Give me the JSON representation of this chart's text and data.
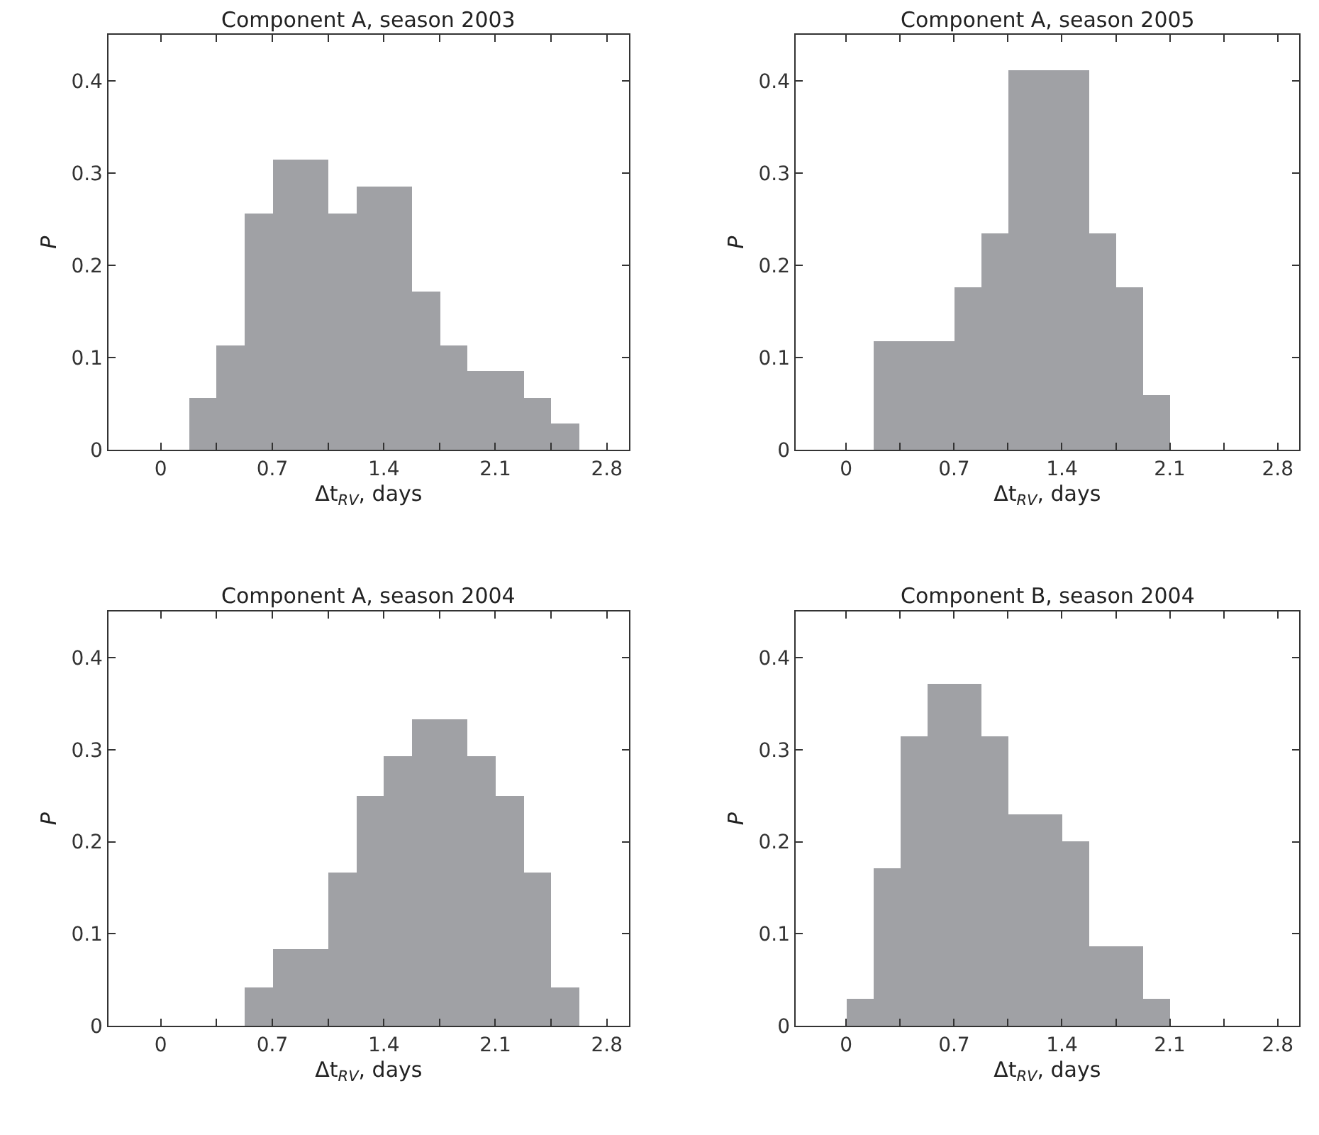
{
  "chart_data": [
    {
      "type": "histogram",
      "title": "Component A, season 2003",
      "xlabel": "Δt$_{RV}$, days",
      "ylabel": "P",
      "color": "#a0a1a5",
      "bins": [
        0.175,
        0.35,
        0.525,
        0.7,
        0.875,
        1.05,
        1.225,
        1.4,
        1.575,
        1.75,
        1.925,
        2.1,
        2.275,
        2.45,
        2.625
      ],
      "values": [
        0.057,
        0.114,
        0.257,
        0.314,
        0.314,
        0.257,
        0.286,
        0.286,
        0.171,
        0.114,
        0.086,
        0.086,
        0.057,
        0.029
      ],
      "xlim": [
        -0.33,
        2.94
      ],
      "ylim": [
        0,
        0.45
      ],
      "xticks": [
        0,
        {
          "value": 0.35,
          "label": null
        },
        0.7,
        {
          "value": 1.05,
          "label": null
        },
        1.4,
        {
          "value": 1.75,
          "label": null
        },
        2.1,
        {
          "value": 2.45,
          "label": null
        },
        2.8
      ],
      "yticks": [
        0,
        0.1,
        0.2,
        0.3,
        0.4
      ]
    },
    {
      "type": "histogram",
      "title": "Component A, season 2005",
      "xlabel": "Δt$_{RV}$, days",
      "ylabel": "P",
      "color": "#a0a1a5",
      "bins": [
        0.175,
        0.35,
        0.525,
        0.7,
        0.875,
        1.05,
        1.225,
        1.4,
        1.575,
        1.75,
        1.925,
        2.1
      ],
      "values": [
        0.118,
        0.118,
        0.118,
        0.176,
        0.235,
        0.412,
        0.412,
        0.412,
        0.235,
        0.176,
        0.059
      ],
      "xlim": [
        -0.33,
        2.94
      ],
      "ylim": [
        0,
        0.45
      ],
      "xticks": [
        0,
        {
          "value": 0.35,
          "label": null
        },
        0.7,
        {
          "value": 1.05,
          "label": null
        },
        1.4,
        {
          "value": 1.75,
          "label": null
        },
        2.1,
        {
          "value": 2.45,
          "label": null
        },
        2.8
      ],
      "yticks": [
        0,
        0.1,
        0.2,
        0.3,
        0.4
      ]
    },
    {
      "type": "histogram",
      "title": "Component A, season 2004",
      "xlabel": "Δt$_{RV}$, days",
      "ylabel": "P",
      "color": "#a0a1a5",
      "bins": [
        0.525,
        0.7,
        0.875,
        1.05,
        1.225,
        1.4,
        1.575,
        1.75,
        1.925,
        2.1,
        2.275,
        2.45,
        2.625
      ],
      "values": [
        0.042,
        0.083,
        0.083,
        0.167,
        0.25,
        0.292,
        0.333,
        0.333,
        0.292,
        0.25,
        0.167,
        0.042
      ],
      "xlim": [
        -0.33,
        2.94
      ],
      "ylim": [
        0,
        0.45
      ],
      "xticks": [
        0,
        {
          "value": 0.35,
          "label": null
        },
        0.7,
        {
          "value": 1.05,
          "label": null
        },
        1.4,
        {
          "value": 1.75,
          "label": null
        },
        2.1,
        {
          "value": 2.45,
          "label": null
        },
        2.8
      ],
      "yticks": [
        0,
        0.1,
        0.2,
        0.3,
        0.4
      ]
    },
    {
      "type": "histogram",
      "title": "Component B, season 2004",
      "xlabel": "Δt$_{RV}$, days",
      "ylabel": "P",
      "color": "#a0a1a5",
      "bins": [
        0,
        0.175,
        0.35,
        0.525,
        0.7,
        0.875,
        1.05,
        1.225,
        1.4,
        1.575,
        1.75,
        1.925,
        2.1
      ],
      "values": [
        0.029,
        0.171,
        0.314,
        0.371,
        0.371,
        0.314,
        0.229,
        0.229,
        0.2,
        0.086,
        0.086,
        0.029
      ],
      "xlim": [
        -0.33,
        2.94
      ],
      "ylim": [
        0,
        0.45
      ],
      "xticks": [
        0,
        {
          "value": 0.35,
          "label": null
        },
        0.7,
        {
          "value": 1.05,
          "label": null
        },
        1.4,
        {
          "value": 1.75,
          "label": null
        },
        2.1,
        {
          "value": 2.45,
          "label": null
        },
        2.8
      ],
      "yticks": [
        0,
        0.1,
        0.2,
        0.3,
        0.4
      ]
    }
  ]
}
